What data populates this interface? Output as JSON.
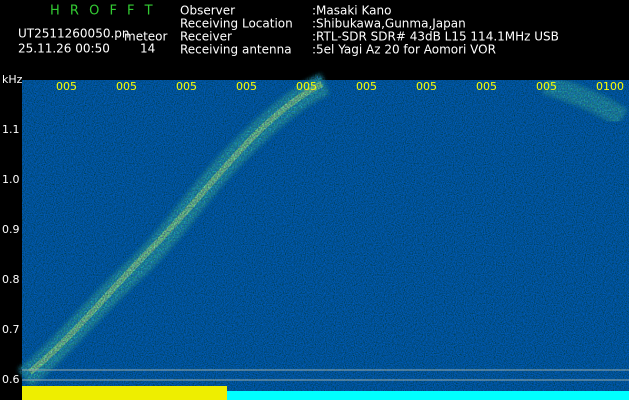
{
  "header": {
    "logo": "H R O F F T",
    "file": "UT2511260050.pn",
    "tag": "meteor",
    "datetime": "25.11.26 00:50",
    "count": "14"
  },
  "info": [
    {
      "label": "Observer",
      "value": ":Masaki Kano"
    },
    {
      "label": "Receiving Location",
      "value": ":Shibukawa,Gunma,Japan"
    },
    {
      "label": "Receiver",
      "value": ":RTL-SDR SDR# 43dB L15 114.1MHz USB"
    },
    {
      "label": "Receiving antenna",
      "value": ":5el Yagi Az 20 for Aomori VOR"
    }
  ],
  "axis": {
    "unit": "kHz",
    "x_labels": [
      "005",
      "005",
      "005",
      "005",
      "005",
      "005",
      "005",
      "005",
      "005",
      "0100"
    ],
    "y_labels": [
      "1.1",
      "1.0",
      "0.9",
      "0.8",
      "0.7",
      "0.6"
    ]
  }
}
